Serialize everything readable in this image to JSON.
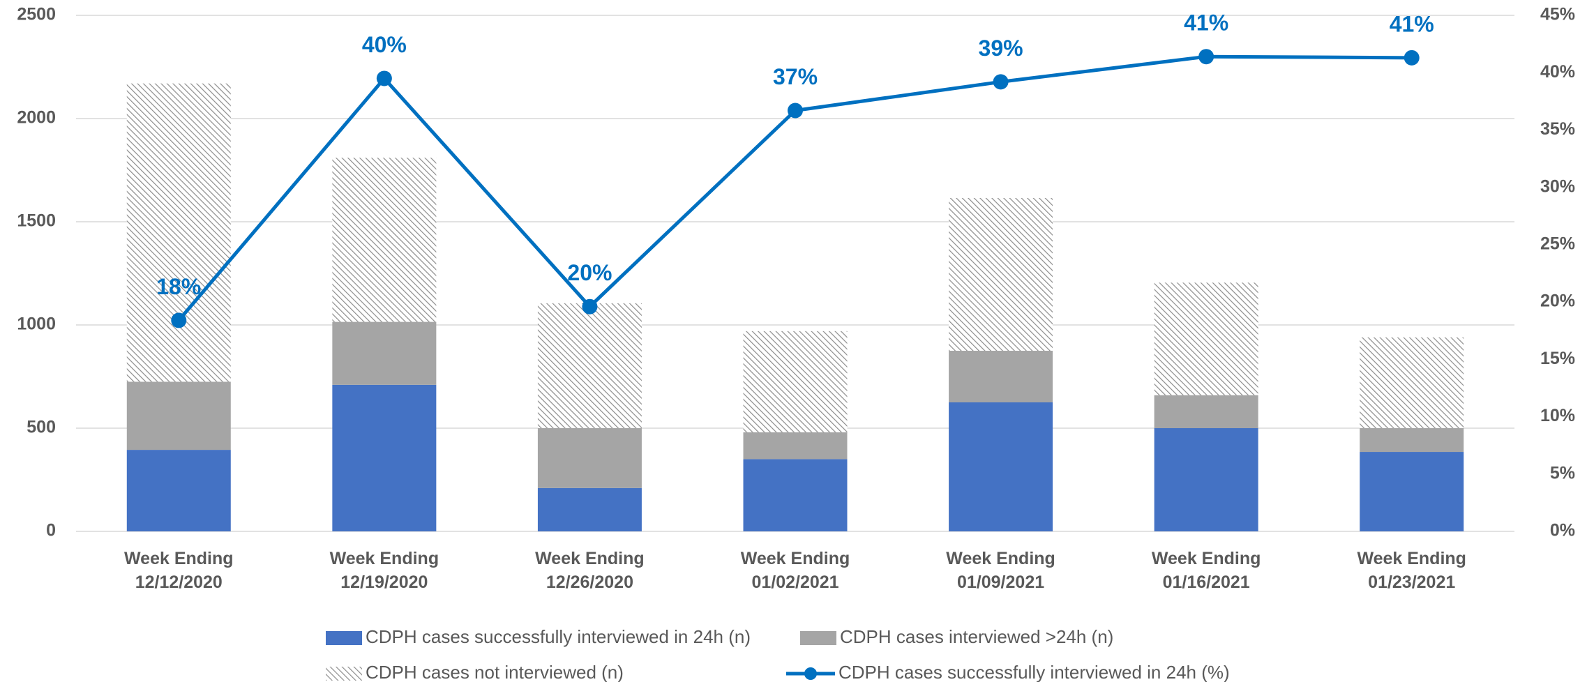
{
  "chart_data": {
    "type": "bar",
    "categories": [
      "Week Ending 12/12/2020",
      "Week Ending 12/19/2020",
      "Week Ending 12/26/2020",
      "Week Ending 01/02/2021",
      "Week Ending 01/09/2021",
      "Week Ending 01/16/2021",
      "Week Ending 01/23/2021"
    ],
    "series": [
      {
        "name": "CDPH cases successfully interviewed in 24h (n)",
        "color": "#4472c4",
        "values": [
          395,
          710,
          210,
          350,
          625,
          500,
          385
        ]
      },
      {
        "name": "CDPH cases interviewed >24h (n)",
        "color": "#a5a5a5",
        "values": [
          330,
          305,
          290,
          130,
          250,
          160,
          115
        ]
      },
      {
        "name": "CDPH cases not interviewed (n)",
        "color": "#a5a5a5",
        "hatch": true,
        "values": [
          1445,
          795,
          605,
          490,
          740,
          545,
          440
        ]
      },
      {
        "name": "CDPH cases successfully interviewed in 24h (%)",
        "color": "#0070c0",
        "type": "line",
        "axis": "y2",
        "values": [
          18.4,
          39.5,
          19.6,
          36.7,
          39.2,
          41.4,
          41.3
        ],
        "value_labels": [
          "18%",
          "40%",
          "20%",
          "37%",
          "39%",
          "41%",
          "41%"
        ]
      }
    ],
    "stacked": true,
    "ylim": [
      0,
      2500
    ],
    "yticks": [
      0,
      500,
      1000,
      1500,
      2000,
      2500
    ],
    "y2lim": [
      0,
      45
    ],
    "y2ticks": [
      {
        "value": 0,
        "label": "0%"
      },
      {
        "value": 5,
        "label": "5%"
      },
      {
        "value": 10,
        "label": "10%"
      },
      {
        "value": 15,
        "label": "15%"
      },
      {
        "value": 20,
        "label": "20%"
      },
      {
        "value": 25,
        "label": "25%"
      },
      {
        "value": 30,
        "label": "30%"
      },
      {
        "value": 35,
        "label": "35%"
      },
      {
        "value": 40,
        "label": "40%"
      },
      {
        "value": 45,
        "label": "45%"
      }
    ],
    "grid": true,
    "legend": "bottom"
  }
}
